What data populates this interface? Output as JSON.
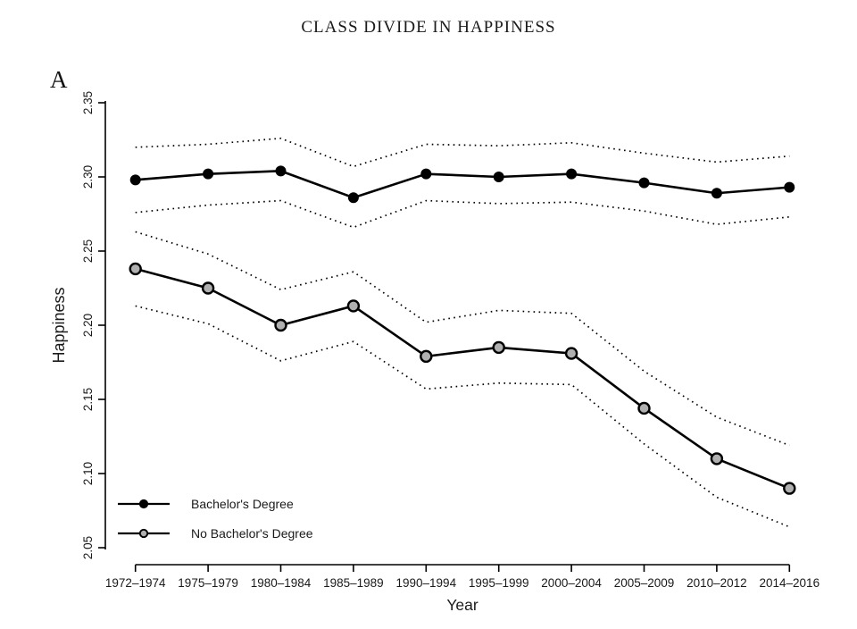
{
  "figure": {
    "title": "CLASS DIVIDE IN HAPPINESS",
    "panel_label": "A"
  },
  "chart_data": {
    "type": "line",
    "title": "CLASS DIVIDE IN HAPPINESS",
    "panel_label": "A",
    "xlabel": "Year",
    "ylabel": "Happiness",
    "categories": [
      "1972–1974",
      "1975–1979",
      "1980–1984",
      "1985–1989",
      "1990–1994",
      "1995–1999",
      "2000–2004",
      "2005–2009",
      "2010–2012",
      "2014–2016"
    ],
    "ylim": [
      2.05,
      2.35
    ],
    "ytick_labels": [
      "2.05",
      "2.10",
      "2.15",
      "2.20",
      "2.25",
      "2.30",
      "2.35"
    ],
    "grid": false,
    "legend_position": "inside-bottom-left",
    "band_style": "dotted",
    "colors": {
      "line": "#000000",
      "band": "#000000",
      "bachelors_marker_fill": "#000000",
      "no_bachelors_marker_fill": "#b0b0b0"
    },
    "series": [
      {
        "name": "Bachelor's Degree",
        "marker_fill": "#000000",
        "marker_stroke": "#000000",
        "values": [
          2.298,
          2.302,
          2.304,
          2.286,
          2.302,
          2.3,
          2.302,
          2.296,
          2.289,
          2.293
        ],
        "ci_upper": [
          2.32,
          2.322,
          2.326,
          2.307,
          2.322,
          2.321,
          2.323,
          2.316,
          2.31,
          2.314
        ],
        "ci_lower": [
          2.276,
          2.281,
          2.284,
          2.266,
          2.284,
          2.282,
          2.283,
          2.277,
          2.268,
          2.273
        ]
      },
      {
        "name": "No Bachelor's Degree",
        "marker_fill": "#b0b0b0",
        "marker_stroke": "#000000",
        "values": [
          2.238,
          2.225,
          2.2,
          2.213,
          2.179,
          2.185,
          2.181,
          2.144,
          2.11,
          2.09
        ],
        "ci_upper": [
          2.263,
          2.248,
          2.224,
          2.236,
          2.202,
          2.21,
          2.208,
          2.169,
          2.138,
          2.119
        ],
        "ci_lower": [
          2.213,
          2.201,
          2.176,
          2.189,
          2.157,
          2.161,
          2.16,
          2.12,
          2.084,
          2.064
        ]
      }
    ]
  }
}
